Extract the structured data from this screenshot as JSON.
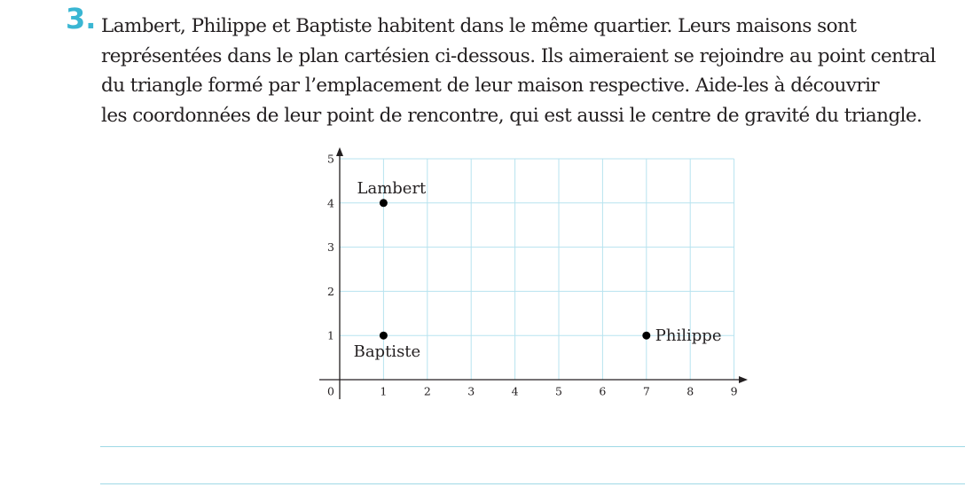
{
  "exercise": {
    "number": "3.",
    "lines": [
      "Lambert, Philippe et Baptiste habitent dans le même quartier. Leurs maisons sont",
      "représentées dans le plan cartésien ci-dessous. Ils aimeraient se rejoindre au point central",
      "du triangle formé par l’emplacement de leur maison respective. Aide-les à découvrir",
      "les coordonnées de leur point de rencontre, qui est aussi le centre de gravité du triangle."
    ]
  },
  "chart_data": {
    "type": "scatter",
    "xlim": [
      0,
      9
    ],
    "ylim": [
      0,
      5
    ],
    "x_ticks": [
      "0",
      "1",
      "2",
      "3",
      "4",
      "5",
      "6",
      "7",
      "8",
      "9"
    ],
    "y_ticks": [
      "1",
      "2",
      "3",
      "4",
      "5"
    ],
    "grid": true,
    "grid_color": "#b7e3ef",
    "points": [
      {
        "label": "Lambert",
        "x": 1,
        "y": 4
      },
      {
        "label": "Baptiste",
        "x": 1,
        "y": 1
      },
      {
        "label": "Philippe",
        "x": 7,
        "y": 1
      }
    ]
  },
  "answer_lines": 2
}
